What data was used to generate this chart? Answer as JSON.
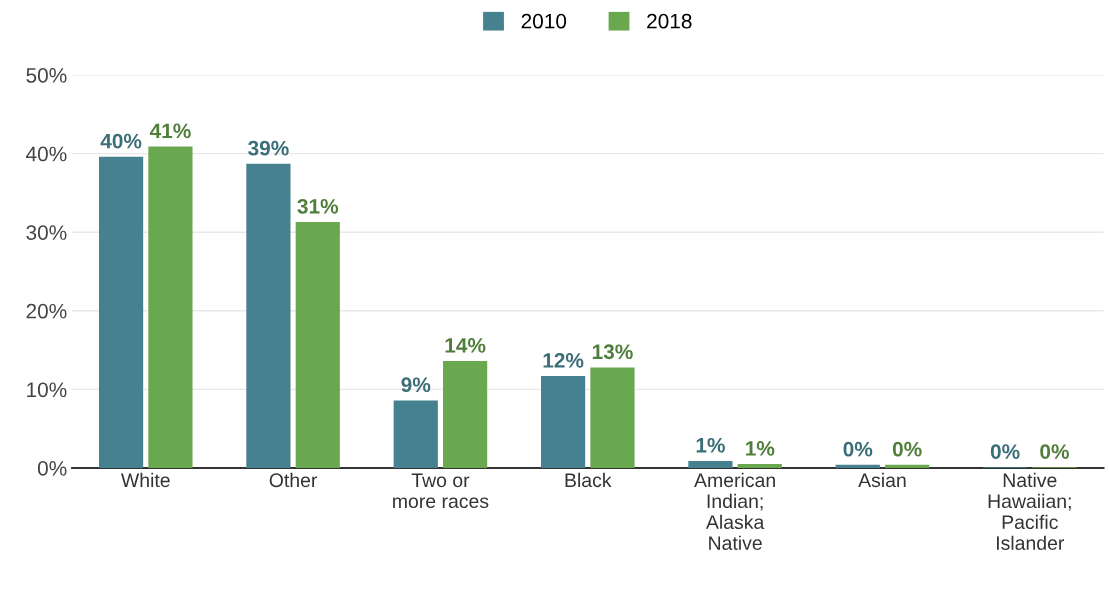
{
  "chart_data": {
    "type": "bar",
    "categories": [
      "White",
      "Other",
      "Two or\nmore races",
      "Black",
      "American\nIndian;\nAlaska\nNative",
      "Asian",
      "Native\nHawaiian;\nPacific\nIslander"
    ],
    "series": [
      {
        "name": "2010",
        "color": "#45818e",
        "values": [
          39.6,
          38.7,
          8.6,
          11.7,
          0.9,
          0.4,
          0.1
        ],
        "value_labels": [
          "40%",
          "39%",
          "9%",
          "12%",
          "1%",
          "0%",
          "0%"
        ]
      },
      {
        "name": "2018",
        "color": "#6aa84f",
        "values": [
          40.9,
          31.3,
          13.6,
          12.8,
          0.5,
          0.4,
          0.1
        ],
        "value_labels": [
          "41%",
          "31%",
          "14%",
          "13%",
          "1%",
          "0%",
          "0%"
        ]
      }
    ],
    "ylim": [
      0,
      50
    ],
    "yticks": [
      {
        "value": 0,
        "label": "0%"
      },
      {
        "value": 10,
        "label": "10%"
      },
      {
        "value": 20,
        "label": "20%"
      },
      {
        "value": 30,
        "label": "30%"
      },
      {
        "value": 40,
        "label": "40%"
      },
      {
        "value": 50,
        "label": "50%"
      }
    ],
    "grid": "y",
    "legend": "top"
  }
}
